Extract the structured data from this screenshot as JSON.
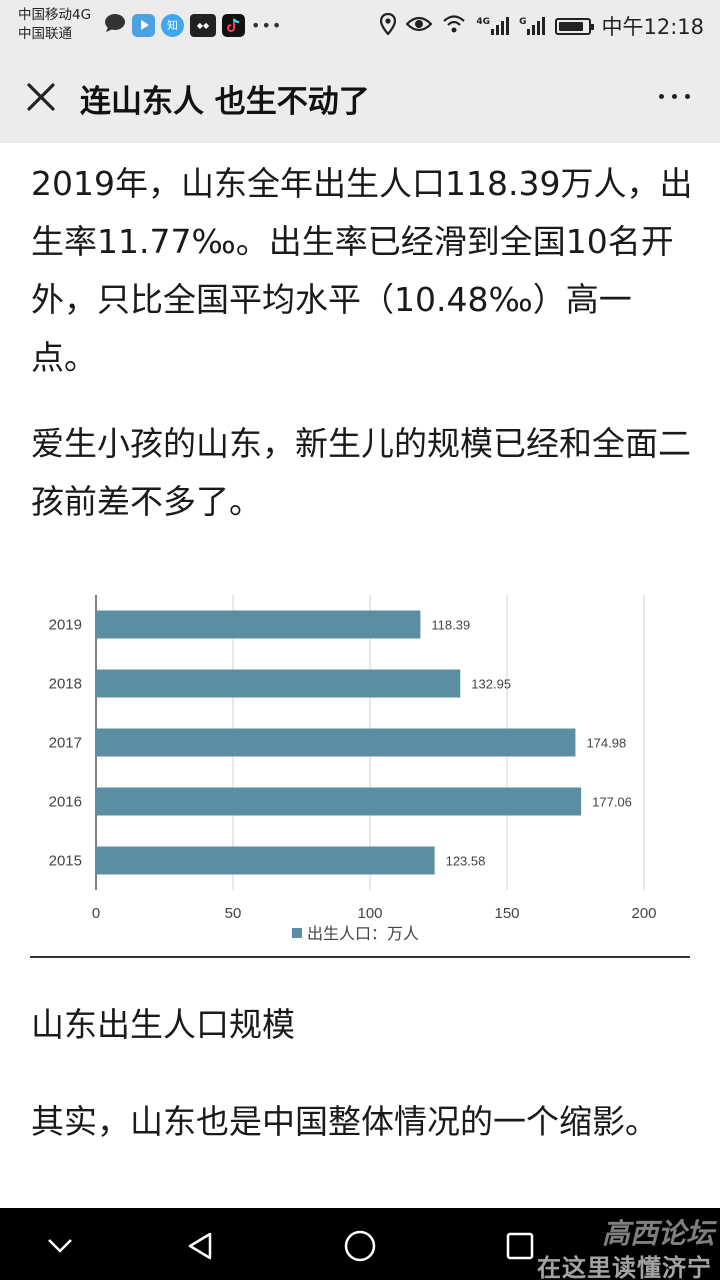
{
  "status_bar": {
    "carrier1": "中国移动4G",
    "carrier2": "中国联通",
    "app_icons": [
      "chat-bubble-icon",
      "video-app-icon",
      "zhihu-icon",
      "dazhong-app-icon",
      "tiktok-icon",
      "more-dots-icon"
    ],
    "zhihu_label": "知",
    "right_icons": [
      "location-icon",
      "eye-icon",
      "wifi-icon",
      "signal-4g-icon",
      "signal-icon",
      "battery-icon"
    ],
    "net1": "4G",
    "net2": "G",
    "battery_level": 0.85,
    "time": "中午12:18"
  },
  "header": {
    "title": "连山东人 也生不动了",
    "icons": [
      "close-icon",
      "more-icon"
    ]
  },
  "article": {
    "paragraph1": "2019年，山东全年出生人口118.39万人，出生率11.77‰。出生率已经滑到全国10名开外，只比全国平均水平（10.48‰）高一点。",
    "paragraph2": "爱生小孩的山东，新生儿的规模已经和全面二孩前差不多了。",
    "chart_caption": "山东出生人口规模",
    "paragraph3": "其实，山东也是中国整体情况的一个缩影。"
  },
  "chart_data": {
    "type": "bar",
    "orientation": "horizontal",
    "categories": [
      "2019",
      "2018",
      "2017",
      "2016",
      "2015"
    ],
    "series": [
      {
        "name": "出生人口：万人",
        "values": [
          118.39,
          132.95,
          174.98,
          177.06,
          123.58
        ],
        "color": "#5b8ea3"
      }
    ],
    "value_labels": [
      "118.39",
      "132.95",
      "174.98",
      "177.06",
      "123.58"
    ],
    "xlim": [
      0,
      200
    ],
    "xticks": [
      0,
      50,
      100,
      150,
      200
    ],
    "xtick_labels": [
      "0",
      "50",
      "100",
      "150",
      "200"
    ],
    "grid": true,
    "legend": "bottom"
  },
  "nav_bar": {
    "icons": [
      "back-chevron-icon",
      "back-triangle-icon",
      "home-circle-icon",
      "recents-square-icon"
    ]
  },
  "watermark": {
    "line1": "高西论坛",
    "line2": "在这里读懂济宁"
  },
  "colors": {
    "bar": "#5b8ea3",
    "header_bg": "#ececec",
    "nav_bg": "#000000"
  }
}
